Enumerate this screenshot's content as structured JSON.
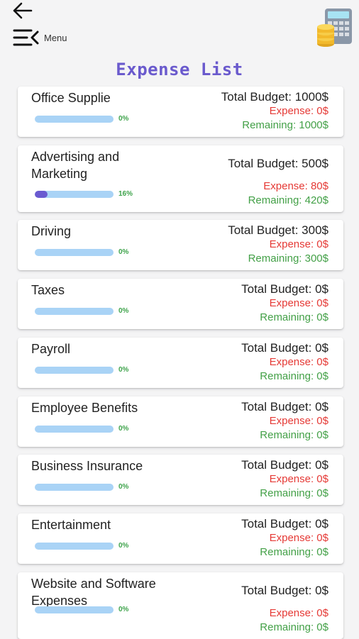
{
  "header": {
    "menu_label": "Menu",
    "title": "Expense List"
  },
  "colors": {
    "title": "#6a5acd",
    "progress_track": "#a9d3f6",
    "progress_fill": "#6a5ad0",
    "percent": "#3ea34b",
    "expense": "#e53935",
    "remaining": "#43a047"
  },
  "categories": [
    {
      "name": "Office Supplie",
      "progress": 0,
      "percent_label": "0%",
      "total_budget": "Total Budget: 1000$",
      "expense": "Expense: 0$",
      "remaining": "Remaining: 1000$"
    },
    {
      "name": "Advertising and Marketing",
      "progress": 0.16,
      "percent_label": "16%",
      "total_budget": "Total Budget: 500$",
      "expense": "Expense: 80$",
      "remaining": "Remaining: 420$"
    },
    {
      "name": "Driving",
      "progress": 0,
      "percent_label": "0%",
      "total_budget": "Total Budget: 300$",
      "expense": "Expense: 0$",
      "remaining": "Remaining: 300$"
    },
    {
      "name": "Taxes",
      "progress": 0,
      "percent_label": "0%",
      "total_budget": "Total Budget: 0$",
      "expense": "Expense: 0$",
      "remaining": "Remaining: 0$"
    },
    {
      "name": "Payroll",
      "progress": 0,
      "percent_label": "0%",
      "total_budget": "Total Budget: 0$",
      "expense": "Expense: 0$",
      "remaining": "Remaining: 0$"
    },
    {
      "name": "Employee Benefits",
      "progress": 0,
      "percent_label": "0%",
      "total_budget": "Total Budget: 0$",
      "expense": "Expense: 0$",
      "remaining": "Remaining: 0$"
    },
    {
      "name": "Business Insurance",
      "progress": 0,
      "percent_label": "0%",
      "total_budget": "Total Budget: 0$",
      "expense": "Expense: 0$",
      "remaining": "Remaining: 0$"
    },
    {
      "name": "Entertainment",
      "progress": 0,
      "percent_label": "0%",
      "total_budget": "Total Budget: 0$",
      "expense": "Expense: 0$",
      "remaining": "Remaining: 0$"
    },
    {
      "name": "Website and Software Expenses",
      "progress": 0,
      "percent_label": "0%",
      "total_budget": "Total Budget: 0$",
      "expense": "Expense: 0$",
      "remaining": "Remaining: 0$"
    }
  ]
}
